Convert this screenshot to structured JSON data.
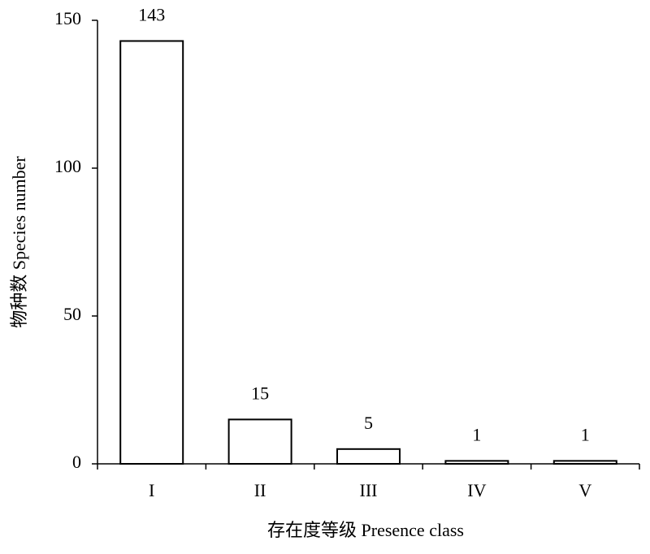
{
  "chart_data": {
    "type": "bar",
    "x_label": "存在度等级 Presence class",
    "y_label": "物种数 Species number",
    "categories": [
      "I",
      "II",
      "III",
      "IV",
      "V"
    ],
    "values": [
      143,
      15,
      5,
      1,
      1
    ],
    "color": "#ffffff",
    "ylim": [
      0,
      150
    ],
    "yticks": [
      0,
      50,
      100,
      150
    ],
    "grid": false
  }
}
